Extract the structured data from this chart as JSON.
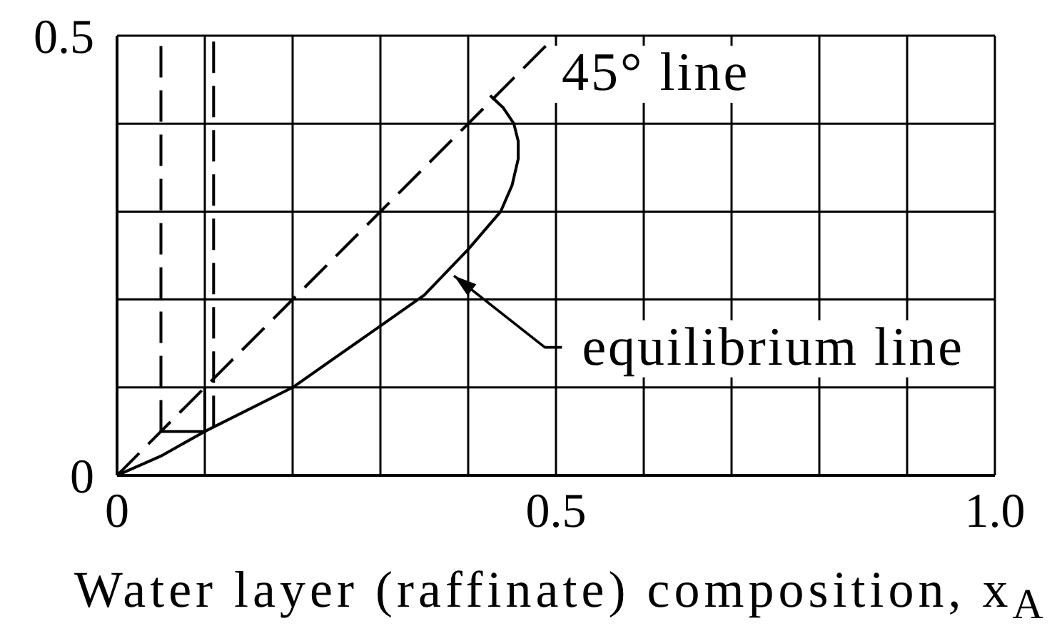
{
  "chart_data": {
    "type": "line",
    "xlabel": "Water layer (raffinate) composition, x$_{A}$",
    "xlim": [
      0,
      1
    ],
    "xticks": [
      0,
      {
        "value": 0.1,
        "label": null
      },
      {
        "value": 0.2,
        "label": null
      },
      {
        "value": 0.3,
        "label": null
      },
      {
        "value": 0.4,
        "label": null
      },
      0.5,
      {
        "value": 0.6,
        "label": null
      },
      {
        "value": 0.7,
        "label": null
      },
      {
        "value": 0.8,
        "label": null
      },
      {
        "value": 0.9,
        "label": null
      },
      {
        "value": 1,
        "label": "1.0"
      }
    ],
    "ylim": [
      0,
      0.5
    ],
    "yticks": [
      0,
      {
        "value": 0.1,
        "label": null
      },
      {
        "value": 0.2,
        "label": null
      },
      {
        "value": 0.3,
        "label": null
      },
      {
        "value": 0.4,
        "label": null
      },
      0.5
    ],
    "grid": true,
    "series": [
      {
        "color": "#000000",
        "line_style": "dashed",
        "x": [
          0,
          0.5
        ],
        "values": [
          0,
          0.5
        ]
      },
      {
        "color": "#000000",
        "line_style": "solid",
        "x": [
          0,
          0.05,
          0.1,
          0.2,
          0.3,
          0.35,
          0.4,
          0.437,
          0.45,
          0.457,
          0.457,
          0.452,
          0.44,
          0.425
        ],
        "values": [
          0,
          0.022,
          0.05,
          0.1,
          0.17,
          0.205,
          0.257,
          0.3,
          0.33,
          0.36,
          0.38,
          0.4,
          0.418,
          0.432
        ]
      },
      {
        "color": "#000000",
        "line_style": "dashed",
        "x": [
          0.05,
          0.05
        ],
        "values": [
          0.05,
          0.5
        ]
      },
      {
        "color": "#000000",
        "line_style": "dashed",
        "x": [
          0.11,
          0.11
        ],
        "values": [
          0.055,
          0.5
        ]
      },
      {
        "color": "#000000",
        "line_style": "solid",
        "x": [
          0.05,
          0.1,
          0.1
        ],
        "values": [
          0.05,
          0.05,
          0.1
        ]
      }
    ],
    "annotations": [
      {
        "text": "45° line",
        "x": 0.5,
        "y": 0.5
      },
      {
        "text": "equilibrium line",
        "x": 0.38,
        "y": 0.23
      }
    ]
  }
}
